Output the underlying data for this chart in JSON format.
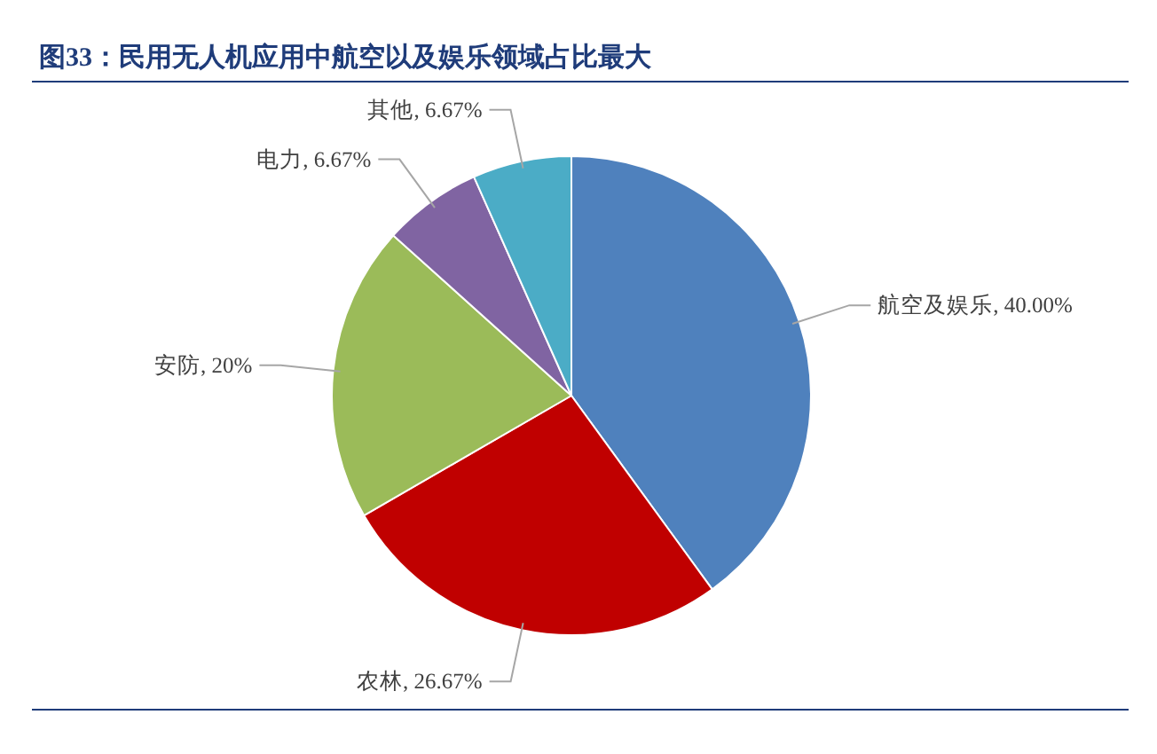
{
  "chart_data": {
    "type": "pie",
    "title": "图33：民用无人机应用中航空以及娱乐领域占比最大",
    "categories": [
      "航空及娱乐",
      "农林",
      "安防",
      "电力",
      "其他"
    ],
    "values": [
      40.0,
      26.67,
      20,
      6.67,
      6.67
    ],
    "value_labels": [
      "40.00%",
      "26.67%",
      "20%",
      "6.67%",
      "6.67%"
    ],
    "colors": [
      "#4f81bd",
      "#c00000",
      "#9bbb59",
      "#8064a2",
      "#4bacc6"
    ]
  }
}
